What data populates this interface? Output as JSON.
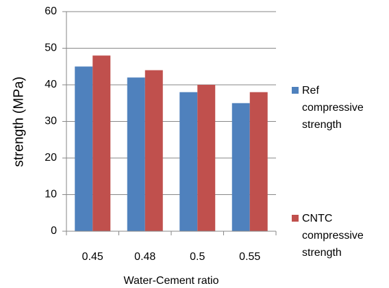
{
  "chart_data": {
    "type": "bar",
    "x_label": "Water-Cement ratio",
    "y_label": "strength (MPa)",
    "categories": [
      "0.45",
      "0.48",
      "0.5",
      "0.55"
    ],
    "series": [
      {
        "name": "Ref compressive strength",
        "color": "#4f81bd",
        "values": [
          45,
          42,
          38,
          35
        ]
      },
      {
        "name": "CNTC compressive strength",
        "color": "#c0504d",
        "values": [
          48,
          44,
          40,
          38
        ]
      }
    ],
    "ylim": [
      0,
      60
    ],
    "yticks": [
      0,
      10,
      20,
      30,
      40,
      50,
      60
    ],
    "grid": true,
    "legend": "right"
  }
}
